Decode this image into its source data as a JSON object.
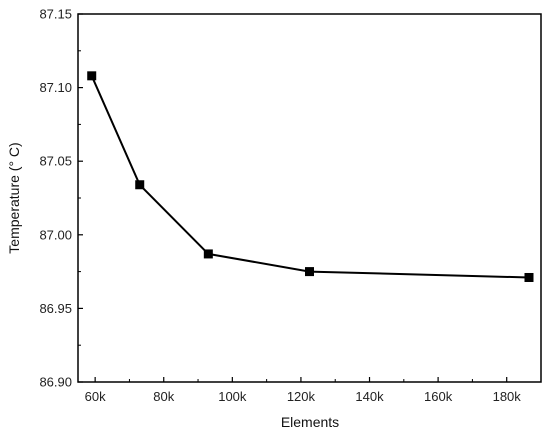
{
  "chart_data": {
    "type": "line",
    "title": "",
    "xlabel": "Elements",
    "ylabel": "Temperature (° C)",
    "xlim": [
      55000,
      190000
    ],
    "ylim": [
      86.9,
      87.15
    ],
    "x_ticks": [
      60000,
      80000,
      100000,
      120000,
      140000,
      160000,
      180000
    ],
    "x_tick_labels": [
      "60k",
      "80k",
      "100k",
      "120k",
      "140k",
      "160k",
      "180k"
    ],
    "y_ticks": [
      86.9,
      86.95,
      87.0,
      87.05,
      87.1,
      87.15
    ],
    "y_tick_labels": [
      "86.90",
      "86.95",
      "87.00",
      "87.05",
      "87.10",
      "87.15"
    ],
    "grid": false,
    "legend": "none",
    "series": [
      {
        "x": [
          59000,
          73000,
          93000,
          122500,
          186500
        ],
        "y": [
          87.108,
          87.034,
          86.987,
          86.975,
          86.971
        ],
        "color": "#000000",
        "marker": "square"
      }
    ]
  }
}
